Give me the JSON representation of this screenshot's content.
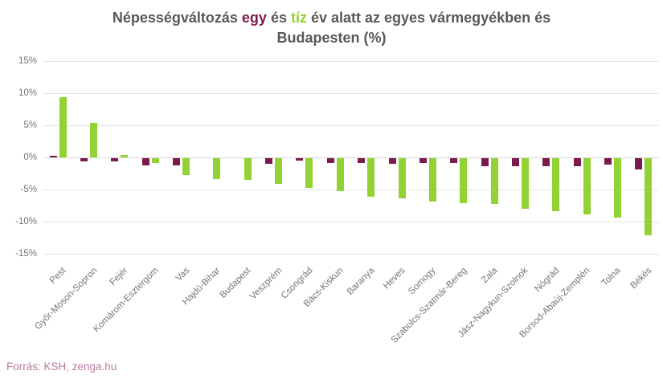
{
  "colors": {
    "title": "#58585a",
    "egy": "#7a1a4d",
    "tiz": "#92d233",
    "axis": "#757575",
    "grid": "#e4e4e4",
    "footer": "#bb7aa0"
  },
  "footer": {
    "source": "Forrás: KSH, zenga.hu"
  },
  "chart_data": {
    "type": "bar",
    "title_parts": [
      {
        "text": "Népességváltozás ",
        "color_key": "title"
      },
      {
        "text": "egy",
        "color_key": "egy"
      },
      {
        "text": " és ",
        "color_key": "title"
      },
      {
        "text": "tíz",
        "color_key": "tiz"
      },
      {
        "text": " év alatt az egyes vármegyékben és",
        "color_key": "title"
      },
      {
        "br": true
      },
      {
        "text": "Budapesten (%)",
        "color_key": "title"
      }
    ],
    "categories": [
      "Pest",
      "Győr-Moson-Sopron",
      "Fejér",
      "Komárom-Esztergom",
      "Vas",
      "Hajdú-Bihar",
      "Budapest",
      "Veszprém",
      "Csongrád",
      "Bács-Kiskun",
      "Baranya",
      "Heves",
      "Somogy",
      "Szabolcs-Szatmár-Bereg",
      "Zala",
      "Jász-Nagykun-Szolnok",
      "Nógrád",
      "Borsod-Abaúj-Zemplén",
      "Tolna",
      "Békés"
    ],
    "series": [
      {
        "name": "egy",
        "color_key": "egy",
        "values": [
          0.3,
          -0.5,
          -0.5,
          -1.1,
          -1.1,
          0.0,
          0.0,
          -0.9,
          -0.4,
          -0.8,
          -0.7,
          -0.9,
          -0.8,
          -0.7,
          -1.3,
          -1.3,
          -1.3,
          -1.3,
          -1.0,
          -1.7
        ]
      },
      {
        "name": "tíz",
        "color_key": "tiz",
        "values": [
          9.4,
          5.4,
          0.4,
          -0.8,
          -2.6,
          -3.2,
          -3.4,
          -4.0,
          -4.6,
          -5.1,
          -6.0,
          -6.2,
          -6.8,
          -7.0,
          -7.1,
          -7.9,
          -8.3,
          -8.8,
          -9.2,
          -12.0
        ]
      }
    ],
    "y_ticks": [
      {
        "label": "15%",
        "value": 15
      },
      {
        "label": "10%",
        "value": 10
      },
      {
        "label": "5%",
        "value": 5
      },
      {
        "label": "0%",
        "value": 0
      },
      {
        "label": "-5%",
        "value": -5
      },
      {
        "label": "-10%",
        "value": -10
      },
      {
        "label": "-15%",
        "value": -15
      }
    ],
    "ylim": [
      -15,
      15
    ],
    "grid": true,
    "legend": "none (series colored in title)"
  }
}
